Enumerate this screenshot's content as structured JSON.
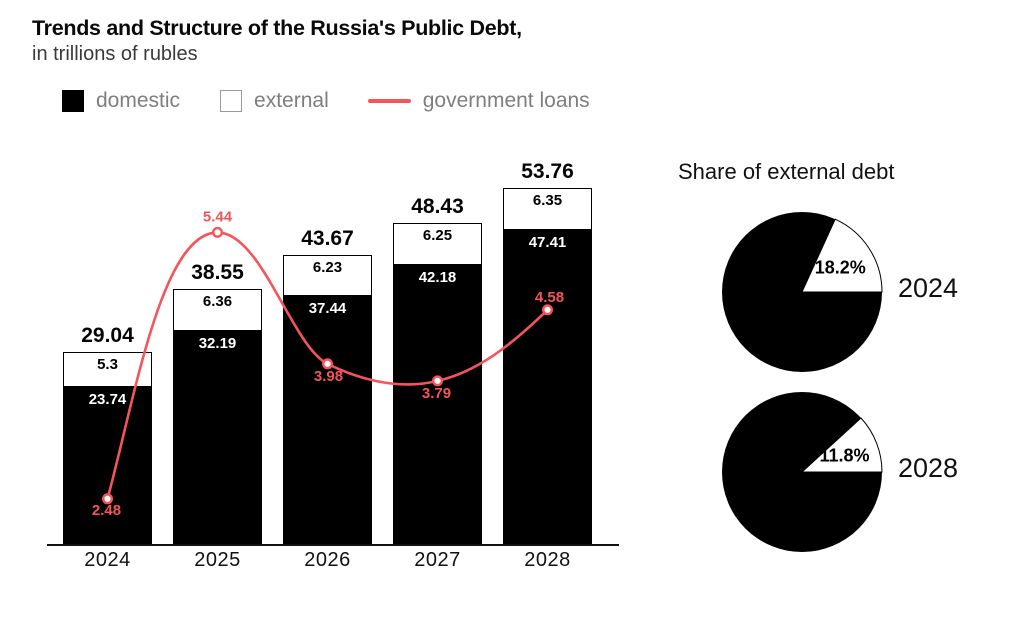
{
  "title": "Trends and Structure of the Russia's Public Debt,",
  "subtitle": "in trillions of rubles",
  "legend": {
    "domestic": "domestic",
    "external": "external",
    "government_loans": "government loans"
  },
  "colors": {
    "domestic": "#000000",
    "external_fill": "#ffffff",
    "line": "#f4555b",
    "legend_text": "#7e7e7e"
  },
  "chart_data": [
    {
      "type": "bar",
      "stacked": true,
      "title": "Trends and Structure of the Russia's Public Debt, in trillions of rubles",
      "categories": [
        "2024",
        "2025",
        "2026",
        "2027",
        "2028"
      ],
      "series": [
        {
          "name": "domestic",
          "values": [
            23.74,
            32.19,
            37.44,
            42.18,
            47.41
          ]
        },
        {
          "name": "external",
          "values": [
            5.3,
            6.36,
            6.23,
            6.25,
            6.35
          ]
        }
      ],
      "totals": [
        29.04,
        38.55,
        43.67,
        48.43,
        53.76
      ],
      "line_series": {
        "name": "government loans",
        "values": [
          2.48,
          5.44,
          3.98,
          3.79,
          4.58
        ]
      },
      "ylim": [
        0,
        58
      ],
      "grid": false,
      "legend_position": "top-left"
    },
    {
      "type": "pie",
      "title": "Share of external debt",
      "pies": [
        {
          "label": "2024",
          "value_pct": 18.2,
          "display": "18.2%",
          "rest_pct": 81.8
        },
        {
          "label": "2028",
          "value_pct": 11.8,
          "display": "11.8%",
          "rest_pct": 88.2
        }
      ]
    }
  ]
}
